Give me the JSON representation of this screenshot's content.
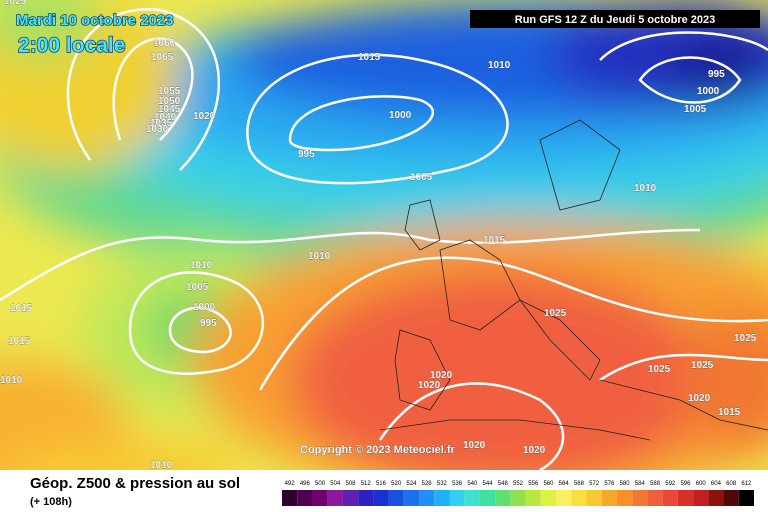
{
  "header": {
    "date": "Mardi 10 octobre 2023",
    "time": "2:00 locale",
    "run": "Run GFS 12 Z du Jeudi 5 octobre 2023"
  },
  "isobar_labels": [
    "1025",
    "1060",
    "1065",
    "1055",
    "1050",
    "1045",
    "1040",
    "1035",
    "1030",
    "1020",
    "1015",
    "1010",
    "995",
    "1000",
    "1005",
    "1000",
    "995",
    "1005",
    "1010",
    "1015",
    "1010",
    "1010",
    "1005",
    "1000",
    "995",
    "1015",
    "1015",
    "1010",
    "1025",
    "1025",
    "1025",
    "1025",
    "1020",
    "1020",
    "1020",
    "1015",
    "1020",
    "1020",
    "1010"
  ],
  "copyright": "Copyright © 2023 Meteociel.fr",
  "footer": {
    "title": "Géop. Z500 & pression au sol",
    "lead": "(+ 108h)"
  },
  "color_scale": {
    "labels": [
      492,
      496,
      500,
      504,
      508,
      512,
      516,
      520,
      524,
      528,
      532,
      536,
      540,
      544,
      548,
      552,
      556,
      560,
      564,
      568,
      572,
      576,
      580,
      584,
      588,
      592,
      596,
      600,
      604,
      608,
      612
    ],
    "colors": [
      "#300030",
      "#500050",
      "#700070",
      "#8a1a9a",
      "#6020b0",
      "#3020c0",
      "#1a30d0",
      "#1a50e0",
      "#1e70f0",
      "#2090f8",
      "#20b0f8",
      "#30d0f0",
      "#40e0d0",
      "#40e0a0",
      "#60e070",
      "#90e050",
      "#b8e840",
      "#e0f040",
      "#f8f060",
      "#f8e040",
      "#f8c830",
      "#f8a828",
      "#f89028",
      "#f07830",
      "#f06038",
      "#e84838",
      "#d83028",
      "#c02020",
      "#901010",
      "#500808",
      "#000000"
    ]
  }
}
